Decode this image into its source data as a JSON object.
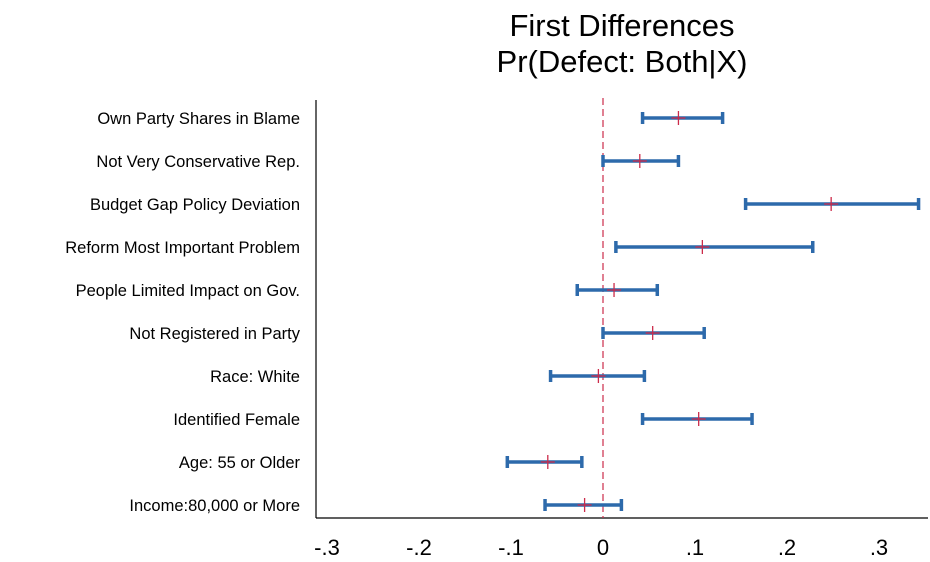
{
  "chart_data": {
    "type": "scatter",
    "title": "First Differences",
    "subtitle": "Pr(Defect: Both|X)",
    "xlabel": "",
    "ylabel": "",
    "xlim": [
      -0.315,
      0.355
    ],
    "x_ticks": [
      -0.3,
      -0.2,
      -0.1,
      0,
      0.1,
      0.2,
      0.3
    ],
    "x_tick_labels": [
      "-.3",
      "-.2",
      "-.1",
      "0",
      ".1",
      ".2",
      ".3"
    ],
    "reference_line": 0,
    "grid": false,
    "colors": {
      "interval": "#2d6aab",
      "point": "#cc2b4a",
      "reference": "#cc2b4a",
      "axis": "#000000"
    },
    "categories": [
      "Own Party Shares in Blame",
      "Not Very Conservative Rep.",
      "Budget Gap Policy Deviation",
      "Reform Most Important Problem",
      "People Limited Impact on Gov.",
      "Not Registered in Party",
      "Race: White",
      "Identified Female",
      "Age: 55 or Older",
      "Income:80,000 or More"
    ],
    "estimates": [
      0.082,
      0.04,
      0.248,
      0.108,
      0.012,
      0.054,
      -0.005,
      0.104,
      -0.06,
      -0.02
    ],
    "lower": [
      0.043,
      0.0,
      0.155,
      0.014,
      -0.028,
      0.0,
      -0.057,
      0.043,
      -0.104,
      -0.063
    ],
    "upper": [
      0.13,
      0.082,
      0.343,
      0.228,
      0.059,
      0.11,
      0.045,
      0.162,
      -0.023,
      0.02
    ]
  }
}
